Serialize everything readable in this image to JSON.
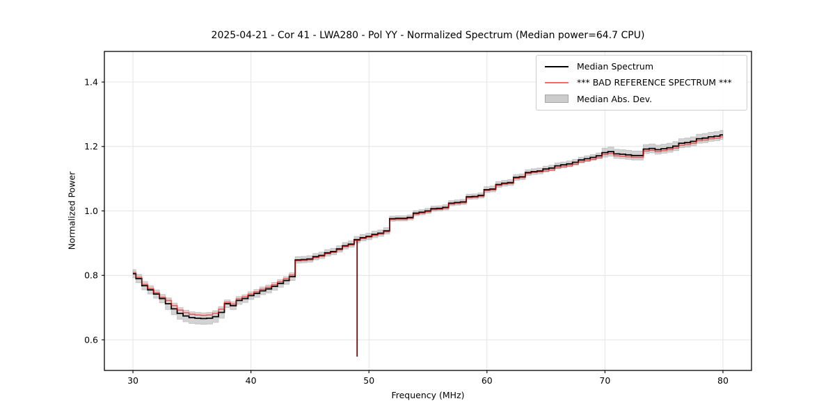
{
  "figure": {
    "title": "2025-04-21 - Cor 41 - LWA280 - Pol YY - Normalized Spectrum (Median power=64.7 CPU)",
    "xlabel": "Frequency (MHz)",
    "ylabel": "Normalized Power",
    "background": "#ffffff"
  },
  "legend": {
    "items": [
      {
        "label": "Median Spectrum",
        "swatch": "line",
        "color": "#000000"
      },
      {
        "label": "*** BAD REFERENCE SPECTRUM ***",
        "swatch": "line",
        "color": "#ff6666"
      },
      {
        "label": "Median Abs. Dev.",
        "swatch": "patch",
        "color": "#cccccc"
      }
    ]
  },
  "axes": {
    "xticks": [
      30,
      40,
      50,
      60,
      70,
      80
    ],
    "xtick_labels": [
      "30",
      "40",
      "50",
      "60",
      "70",
      "80"
    ],
    "yticks": [
      0.6,
      0.8,
      1.0,
      1.2,
      1.4
    ],
    "ytick_labels": [
      "0.6",
      "0.8",
      "1.0",
      "1.2",
      "1.4"
    ],
    "xlim": [
      27.58,
      82.42
    ],
    "ylim": [
      0.505,
      1.495
    ],
    "grid": true,
    "grid_color": "#e4e4e4",
    "spine_color": "#000000"
  },
  "chart_data": {
    "type": "line",
    "title": "2025-04-21 - Cor 41 - LWA280 - Pol YY - Normalized Spectrum (Median power=64.7 CPU)",
    "xlabel": "Frequency (MHz)",
    "ylabel": "Normalized Power",
    "xlim": [
      27.58,
      82.42
    ],
    "ylim": [
      0.505,
      1.495
    ],
    "legend_position": "upper right",
    "line_style": "steps-mid",
    "x": [
      30,
      30.5,
      31,
      31.5,
      32,
      32.5,
      33,
      33.5,
      34,
      34.5,
      35,
      35.5,
      36,
      36.5,
      37,
      37.5,
      38,
      38.5,
      39,
      39.5,
      40,
      40.5,
      41,
      41.5,
      42,
      42.5,
      43,
      43.5,
      44,
      44.5,
      45,
      45.5,
      46,
      46.5,
      47,
      47.5,
      48,
      48.5,
      49,
      49.5,
      50,
      50.5,
      51,
      51.5,
      52,
      52.5,
      53,
      53.5,
      54,
      54.5,
      55,
      55.5,
      56,
      56.5,
      57,
      57.5,
      58,
      58.5,
      59,
      59.5,
      60,
      60.5,
      61,
      61.5,
      62,
      62.5,
      63,
      63.5,
      64,
      64.5,
      65,
      65.5,
      66,
      66.5,
      67,
      67.5,
      68,
      68.5,
      69,
      69.5,
      70,
      70.5,
      71,
      71.5,
      72,
      72.5,
      73,
      73.5,
      74,
      74.5,
      75,
      75.5,
      76,
      76.5,
      77,
      77.5,
      78,
      78.5,
      79,
      79.5,
      80
    ],
    "series": [
      {
        "name": "Median Spectrum",
        "color": "#000000",
        "opacity": 1,
        "values": [
          0.805,
          0.79,
          0.768,
          0.755,
          0.742,
          0.728,
          0.712,
          0.696,
          0.682,
          0.674,
          0.669,
          0.667,
          0.666,
          0.667,
          0.672,
          0.685,
          0.712,
          0.706,
          0.722,
          0.728,
          0.737,
          0.744,
          0.752,
          0.758,
          0.766,
          0.775,
          0.784,
          0.796,
          0.848,
          0.849,
          0.851,
          0.858,
          0.862,
          0.87,
          0.874,
          0.882,
          0.892,
          0.897,
          0.911,
          0.917,
          0.921,
          0.927,
          0.931,
          0.938,
          0.976,
          0.977,
          0.977,
          0.98,
          0.993,
          0.996,
          1.0,
          1.007,
          1.008,
          1.011,
          1.024,
          1.026,
          1.028,
          1.044,
          1.045,
          1.048,
          1.066,
          1.068,
          1.082,
          1.086,
          1.088,
          1.104,
          1.106,
          1.119,
          1.122,
          1.124,
          1.13,
          1.133,
          1.14,
          1.143,
          1.146,
          1.151,
          1.158,
          1.162,
          1.166,
          1.171,
          1.181,
          1.184,
          1.177,
          1.176,
          1.174,
          1.172,
          1.172,
          1.192,
          1.194,
          1.19,
          1.193,
          1.196,
          1.201,
          1.21,
          1.212,
          1.216,
          1.224,
          1.226,
          1.23,
          1.232,
          1.236
        ]
      },
      {
        "name": "*** BAD REFERENCE SPECTRUM ***",
        "color": "#ff0000",
        "opacity": 0.6,
        "values": [
          0.809,
          0.794,
          0.772,
          0.759,
          0.746,
          0.732,
          0.722,
          0.706,
          0.692,
          0.684,
          0.679,
          0.677,
          0.676,
          0.677,
          0.682,
          0.695,
          0.717,
          0.711,
          0.727,
          0.733,
          0.742,
          0.749,
          0.757,
          0.763,
          0.771,
          0.78,
          0.789,
          0.801,
          0.845,
          0.846,
          0.848,
          0.855,
          0.859,
          0.867,
          0.871,
          0.879,
          0.889,
          0.894,
          0.908,
          0.914,
          0.918,
          0.924,
          0.928,
          0.935,
          0.973,
          0.974,
          0.974,
          0.977,
          0.99,
          0.993,
          0.997,
          1.004,
          1.005,
          1.008,
          1.021,
          1.023,
          1.025,
          1.041,
          1.042,
          1.045,
          1.063,
          1.065,
          1.079,
          1.083,
          1.085,
          1.101,
          1.103,
          1.116,
          1.119,
          1.121,
          1.124,
          1.127,
          1.134,
          1.137,
          1.14,
          1.145,
          1.152,
          1.156,
          1.16,
          1.165,
          1.175,
          1.178,
          1.171,
          1.17,
          1.168,
          1.166,
          1.166,
          1.186,
          1.188,
          1.184,
          1.187,
          1.19,
          1.195,
          1.204,
          1.206,
          1.21,
          1.218,
          1.22,
          1.224,
          1.226,
          1.23
        ]
      }
    ],
    "band": {
      "name": "Median Abs. Dev.",
      "around": "Median Spectrum",
      "fill": "#9e9e9e",
      "opacity": 0.45,
      "halfwidth": [
        0.013,
        0.013,
        0.013,
        0.013,
        0.013,
        0.013,
        0.018,
        0.018,
        0.018,
        0.018,
        0.018,
        0.018,
        0.018,
        0.018,
        0.018,
        0.018,
        0.012,
        0.012,
        0.012,
        0.012,
        0.012,
        0.012,
        0.012,
        0.012,
        0.012,
        0.012,
        0.012,
        0.012,
        0.01,
        0.01,
        0.01,
        0.01,
        0.01,
        0.01,
        0.01,
        0.01,
        0.01,
        0.01,
        0.01,
        0.01,
        0.01,
        0.01,
        0.01,
        0.01,
        0.008,
        0.008,
        0.008,
        0.008,
        0.008,
        0.008,
        0.008,
        0.008,
        0.008,
        0.008,
        0.008,
        0.008,
        0.008,
        0.008,
        0.008,
        0.008,
        0.009,
        0.009,
        0.009,
        0.009,
        0.009,
        0.009,
        0.009,
        0.009,
        0.009,
        0.009,
        0.009,
        0.009,
        0.009,
        0.009,
        0.009,
        0.009,
        0.009,
        0.009,
        0.009,
        0.009,
        0.014,
        0.014,
        0.014,
        0.014,
        0.014,
        0.014,
        0.014,
        0.014,
        0.014,
        0.014,
        0.014,
        0.014,
        0.014,
        0.014,
        0.014,
        0.014,
        0.014,
        0.014,
        0.014,
        0.014,
        0.014
      ]
    },
    "spike": {
      "x": 49.0,
      "y_bottom": 0.548,
      "note": "single-channel dropout in both spectra at ~49 MHz"
    }
  }
}
